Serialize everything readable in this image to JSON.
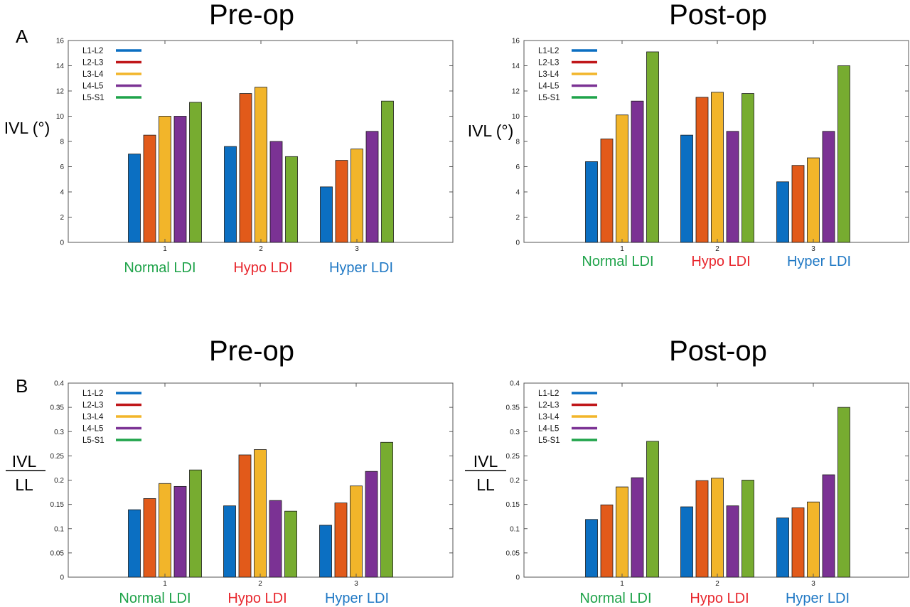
{
  "panel_labels": [
    "A",
    "B"
  ],
  "category_groups": {
    "tick_labels": [
      "1",
      "2",
      "3"
    ],
    "names": [
      "Normal LDI",
      "Hypo LDI",
      "Hyper LDI"
    ],
    "colors": [
      "#1fa34a",
      "#e8272e",
      "#1f78c4"
    ]
  },
  "series_colors": [
    "#0b6fc2",
    "#e25a1a",
    "#f2b52a",
    "#7b3294",
    "#77ac30"
  ],
  "legend_line_colors": [
    "#0b6fc2",
    "#c0171a",
    "#f2b52a",
    "#7b3294",
    "#1fa34a"
  ],
  "chart_data": [
    {
      "type": "bar",
      "title": "Pre-op",
      "ylabel": "IVL (°)",
      "categories": [
        "1",
        "2",
        "3"
      ],
      "ylim": [
        0,
        16
      ],
      "yticks": [
        "0",
        "2",
        "4",
        "6",
        "8",
        "10",
        "12",
        "14",
        "16"
      ],
      "legend_position": "top-left",
      "grid": false,
      "series": [
        {
          "name": "L1-L2",
          "values": [
            7.0,
            7.6,
            4.4
          ]
        },
        {
          "name": "L2-L3",
          "values": [
            8.5,
            11.8,
            6.5
          ]
        },
        {
          "name": "L3-L4",
          "values": [
            10.0,
            12.3,
            7.4
          ]
        },
        {
          "name": "L4-L5",
          "values": [
            10.0,
            8.0,
            8.8
          ]
        },
        {
          "name": "L5-S1",
          "values": [
            11.1,
            6.8,
            11.2
          ]
        }
      ]
    },
    {
      "type": "bar",
      "title": "Post-op",
      "ylabel": "IVL (°)",
      "categories": [
        "1",
        "2",
        "3"
      ],
      "ylim": [
        0,
        16
      ],
      "yticks": [
        "0",
        "2",
        "4",
        "6",
        "8",
        "10",
        "12",
        "14",
        "16"
      ],
      "legend_position": "top-left",
      "grid": false,
      "series": [
        {
          "name": "L1-L2",
          "values": [
            6.4,
            8.5,
            4.8
          ]
        },
        {
          "name": "L2-L3",
          "values": [
            8.2,
            11.5,
            6.1
          ]
        },
        {
          "name": "L3-L4",
          "values": [
            10.1,
            11.9,
            6.7
          ]
        },
        {
          "name": "L4-L5",
          "values": [
            11.2,
            8.8,
            8.8
          ]
        },
        {
          "name": "L5-S1",
          "values": [
            15.1,
            11.8,
            14.0
          ]
        }
      ]
    },
    {
      "type": "bar",
      "title": "Pre-op",
      "ylabel_numerator": "IVL",
      "ylabel_denominator": "LL",
      "categories": [
        "1",
        "2",
        "3"
      ],
      "ylim": [
        0,
        0.4
      ],
      "yticks": [
        "0",
        "0.05",
        "0.1",
        "0.15",
        "0.2",
        "0.25",
        "0.3",
        "0.35",
        "0.4"
      ],
      "legend_position": "top-left",
      "grid": false,
      "series": [
        {
          "name": "L1-L2",
          "values": [
            0.139,
            0.147,
            0.107
          ]
        },
        {
          "name": "L2-L3",
          "values": [
            0.162,
            0.252,
            0.153
          ]
        },
        {
          "name": "L3-L4",
          "values": [
            0.193,
            0.263,
            0.188
          ]
        },
        {
          "name": "L4-L5",
          "values": [
            0.187,
            0.158,
            0.218
          ]
        },
        {
          "name": "L5-S1",
          "values": [
            0.221,
            0.136,
            0.278
          ]
        }
      ]
    },
    {
      "type": "bar",
      "title": "Post-op",
      "ylabel_numerator": "IVL",
      "ylabel_denominator": "LL",
      "categories": [
        "1",
        "2",
        "3"
      ],
      "ylim": [
        0,
        0.4
      ],
      "yticks": [
        "0",
        "0.05",
        "0.1",
        "0.15",
        "0.2",
        "0.25",
        "0.3",
        "0.35",
        "0.4"
      ],
      "legend_position": "top-left",
      "grid": false,
      "series": [
        {
          "name": "L1-L2",
          "values": [
            0.119,
            0.145,
            0.122
          ]
        },
        {
          "name": "L2-L3",
          "values": [
            0.149,
            0.199,
            0.143
          ]
        },
        {
          "name": "L3-L4",
          "values": [
            0.186,
            0.204,
            0.155
          ]
        },
        {
          "name": "L4-L5",
          "values": [
            0.205,
            0.147,
            0.211
          ]
        },
        {
          "name": "L5-S1",
          "values": [
            0.28,
            0.2,
            0.35
          ]
        }
      ]
    }
  ]
}
